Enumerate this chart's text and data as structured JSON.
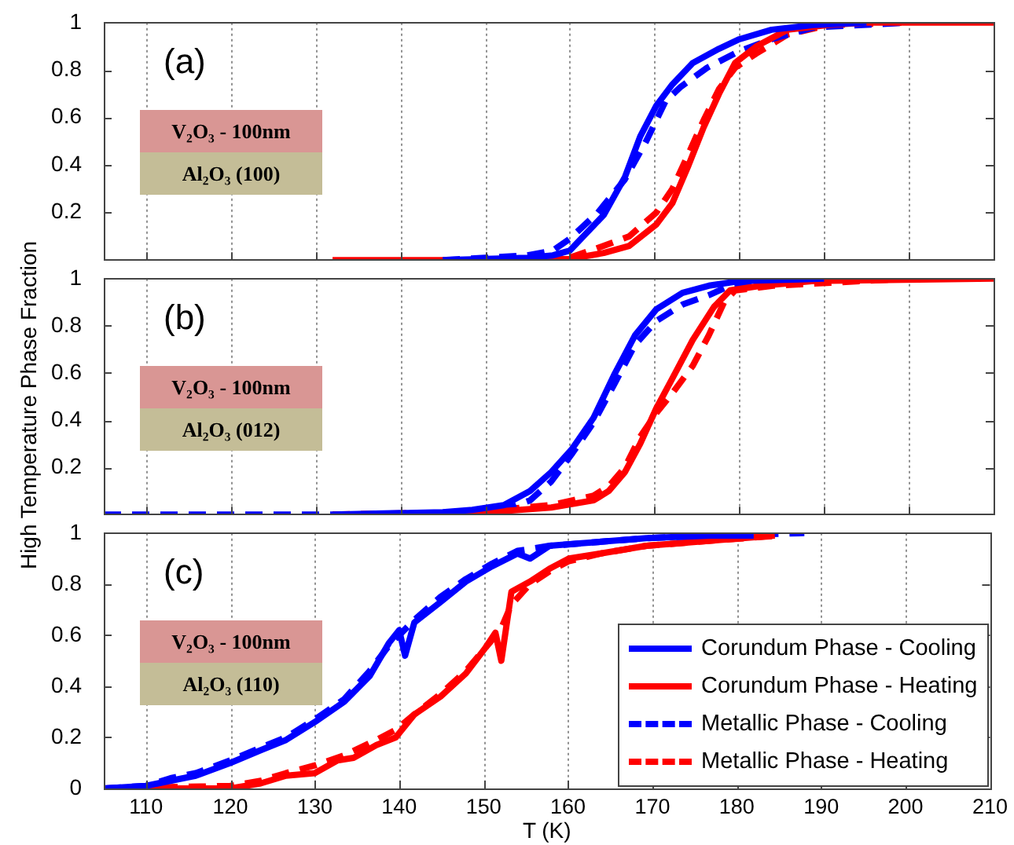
{
  "chart_data": [
    {
      "type": "line",
      "annotations": [
        "(a)",
        "V₂O₃ - 100nm",
        "Al₂O₃ (100)"
      ],
      "xlim": [
        105,
        210
      ],
      "xticks": [
        110,
        120,
        130,
        140,
        150,
        160,
        170,
        180,
        190,
        200,
        210
      ],
      "ylim": [
        0,
        1
      ],
      "yticks": [
        0.2,
        0.4,
        0.6,
        0.8,
        1
      ],
      "grid": "x",
      "tick_labels": "y",
      "series": [
        {
          "color": "#0000ff",
          "line_style": "solid",
          "x": [
            145,
            150,
            155,
            158,
            160,
            164,
            166.5,
            168.3,
            170.2,
            172.1,
            174.5,
            177.6,
            180,
            183.8,
            188.8,
            195
          ],
          "values": [
            0,
            0.005,
            0.01,
            0.02,
            0.04,
            0.19,
            0.35,
            0.52,
            0.65,
            0.74,
            0.83,
            0.89,
            0.93,
            0.97,
            0.99,
            1
          ]
        },
        {
          "color": "#ff0000",
          "line_style": "solid",
          "x": [
            132,
            150,
            160,
            164,
            167,
            170.2,
            172.1,
            173.9,
            175.8,
            177.6,
            179.5,
            182,
            185.7,
            190.5,
            195,
            210
          ],
          "values": [
            0,
            0,
            0.005,
            0.03,
            0.06,
            0.15,
            0.24,
            0.39,
            0.56,
            0.7,
            0.83,
            0.9,
            0.97,
            0.99,
            1,
            1
          ]
        },
        {
          "color": "#0000ff",
          "line_style": "dashed",
          "x": [
            145,
            150,
            155,
            158,
            160,
            163.3,
            166.5,
            169,
            171.3,
            173.1,
            176.2,
            180,
            183.8,
            188.8,
            200
          ],
          "values": [
            0,
            0.01,
            0.02,
            0.04,
            0.09,
            0.2,
            0.34,
            0.5,
            0.67,
            0.73,
            0.81,
            0.88,
            0.93,
            0.98,
            1
          ]
        },
        {
          "color": "#ff0000",
          "line_style": "dashed",
          "x": [
            150,
            160,
            164,
            167,
            170.2,
            172.1,
            173.9,
            175.8,
            177.6,
            179.5,
            182,
            185.7,
            190.5,
            200
          ],
          "values": [
            0,
            0.01,
            0.06,
            0.1,
            0.2,
            0.3,
            0.44,
            0.59,
            0.72,
            0.81,
            0.87,
            0.95,
            0.99,
            1
          ]
        }
      ]
    },
    {
      "type": "line",
      "ylabel": "High Temperature Phase Fraction",
      "annotations": [
        "(b)",
        "V₂O₃ - 100nm",
        "Al₂O₃ (012)"
      ],
      "xlim": [
        105,
        210
      ],
      "xticks": [
        110,
        120,
        130,
        140,
        150,
        160,
        170,
        180,
        190,
        200,
        210
      ],
      "ylim": [
        0,
        1
      ],
      "yticks": [
        0.2,
        0.4,
        0.6,
        0.8,
        1
      ],
      "grid": "x",
      "tick_labels": "y",
      "series": [
        {
          "color": "#0000ff",
          "line_style": "solid",
          "x": [
            132,
            145,
            148.5,
            152.2,
            155.3,
            157.8,
            160.3,
            162.8,
            165.2,
            167.7,
            170.2,
            173.3,
            176.4,
            180.1,
            190
          ],
          "values": [
            0,
            0.01,
            0.02,
            0.04,
            0.1,
            0.18,
            0.28,
            0.41,
            0.59,
            0.76,
            0.87,
            0.94,
            0.97,
            0.99,
            1
          ]
        },
        {
          "color": "#ff0000",
          "line_style": "solid",
          "x": [
            132,
            148.5,
            157.8,
            162.8,
            164.6,
            166.5,
            168.3,
            170.2,
            172,
            174.5,
            177,
            178.9,
            182.6,
            188.8,
            210
          ],
          "values": [
            0,
            0.005,
            0.03,
            0.06,
            0.1,
            0.18,
            0.3,
            0.45,
            0.57,
            0.74,
            0.88,
            0.95,
            0.97,
            0.99,
            1
          ]
        },
        {
          "color": "#0000ff",
          "line_style": "dashed",
          "x": [
            105,
            140,
            148.5,
            152.2,
            155.3,
            157.8,
            160.3,
            162.8,
            165.2,
            167.7,
            170.2,
            173.3,
            176.4,
            178.9,
            183.2
          ],
          "values": [
            0,
            0,
            0.01,
            0.02,
            0.06,
            0.14,
            0.26,
            0.39,
            0.55,
            0.72,
            0.82,
            0.89,
            0.93,
            0.97,
            0.98
          ]
        },
        {
          "color": "#ff0000",
          "line_style": "dashed",
          "x": [
            132,
            148.5,
            157.8,
            162.8,
            164.6,
            166.5,
            168.3,
            170.2,
            172,
            174.5,
            176.4,
            178.2,
            179.5,
            184,
            200
          ],
          "values": [
            0,
            0.01,
            0.04,
            0.08,
            0.12,
            0.2,
            0.33,
            0.43,
            0.51,
            0.63,
            0.76,
            0.9,
            0.95,
            0.97,
            1
          ]
        }
      ]
    },
    {
      "type": "line",
      "xlabel": "T (K)",
      "annotations": [
        "(c)",
        "V₂O₃ - 100nm",
        "Al₂O₃ (110)"
      ],
      "xlim": [
        105,
        210
      ],
      "xticks": [
        110,
        120,
        130,
        140,
        150,
        160,
        170,
        180,
        190,
        200,
        210
      ],
      "ylim": [
        0,
        1
      ],
      "yticks": [
        0,
        0.2,
        0.4,
        0.6,
        0.8,
        1
      ],
      "grid": "x",
      "legend": "bottom right",
      "series": [
        {
          "name": "Corundum Phase - Cooling",
          "color": "#0000ff",
          "line_style": "solid",
          "x": [
            105,
            110,
            112.9,
            115.9,
            120,
            123.6,
            126.6,
            130,
            133.5,
            136.5,
            138.8,
            140,
            140.7,
            141.8,
            144.9,
            147.9,
            151,
            154,
            155.5,
            157.8,
            161.6,
            169.3,
            176.9,
            182
          ],
          "values": [
            0,
            0.01,
            0.03,
            0.05,
            0.1,
            0.15,
            0.19,
            0.26,
            0.34,
            0.44,
            0.57,
            0.62,
            0.52,
            0.65,
            0.73,
            0.81,
            0.87,
            0.92,
            0.9,
            0.95,
            0.96,
            0.98,
            0.99,
            0.99
          ]
        },
        {
          "name": "Corundum Phase - Heating",
          "color": "#ff0000",
          "line_style": "solid",
          "x": [
            105,
            120,
            123.6,
            126.6,
            130,
            132.7,
            134.6,
            137.3,
            139.6,
            141.8,
            144.9,
            147.9,
            150.2,
            151.4,
            152.1,
            153.3,
            155.5,
            157.8,
            160.1,
            163.9,
            169.3,
            176.9,
            184.5
          ],
          "values": [
            0,
            0,
            0.02,
            0.05,
            0.06,
            0.11,
            0.12,
            0.17,
            0.2,
            0.29,
            0.36,
            0.45,
            0.55,
            0.61,
            0.5,
            0.77,
            0.81,
            0.86,
            0.9,
            0.92,
            0.95,
            0.97,
            0.99
          ]
        },
        {
          "name": "Metallic Phase - Cooling",
          "color": "#0000ff",
          "line_style": "dashed",
          "x": [
            105,
            110,
            112.9,
            115.9,
            120,
            123.6,
            126.6,
            130,
            133.5,
            136.5,
            138.8,
            140,
            141.8,
            144.9,
            147.9,
            151,
            154,
            157.8,
            161.6,
            169.3,
            176.9,
            188
          ],
          "values": [
            0,
            0.01,
            0.04,
            0.06,
            0.11,
            0.16,
            0.2,
            0.27,
            0.35,
            0.46,
            0.56,
            0.6,
            0.66,
            0.75,
            0.82,
            0.88,
            0.93,
            0.95,
            0.96,
            0.98,
            0.99,
            1
          ]
        },
        {
          "name": "Metallic Phase - Heating",
          "color": "#ff0000",
          "line_style": "dashed",
          "x": [
            105,
            120,
            123.6,
            126.6,
            130,
            133.5,
            137.3,
            139.6,
            141.8,
            144.9,
            147.9,
            150.2,
            152,
            153.3,
            155.5,
            157.8,
            160.1,
            163.9,
            169.3,
            176.9,
            185
          ],
          "values": [
            0,
            0.01,
            0.03,
            0.06,
            0.09,
            0.13,
            0.19,
            0.23,
            0.29,
            0.37,
            0.46,
            0.55,
            0.62,
            0.72,
            0.8,
            0.85,
            0.89,
            0.92,
            0.95,
            0.97,
            0.99
          ]
        }
      ]
    }
  ]
}
